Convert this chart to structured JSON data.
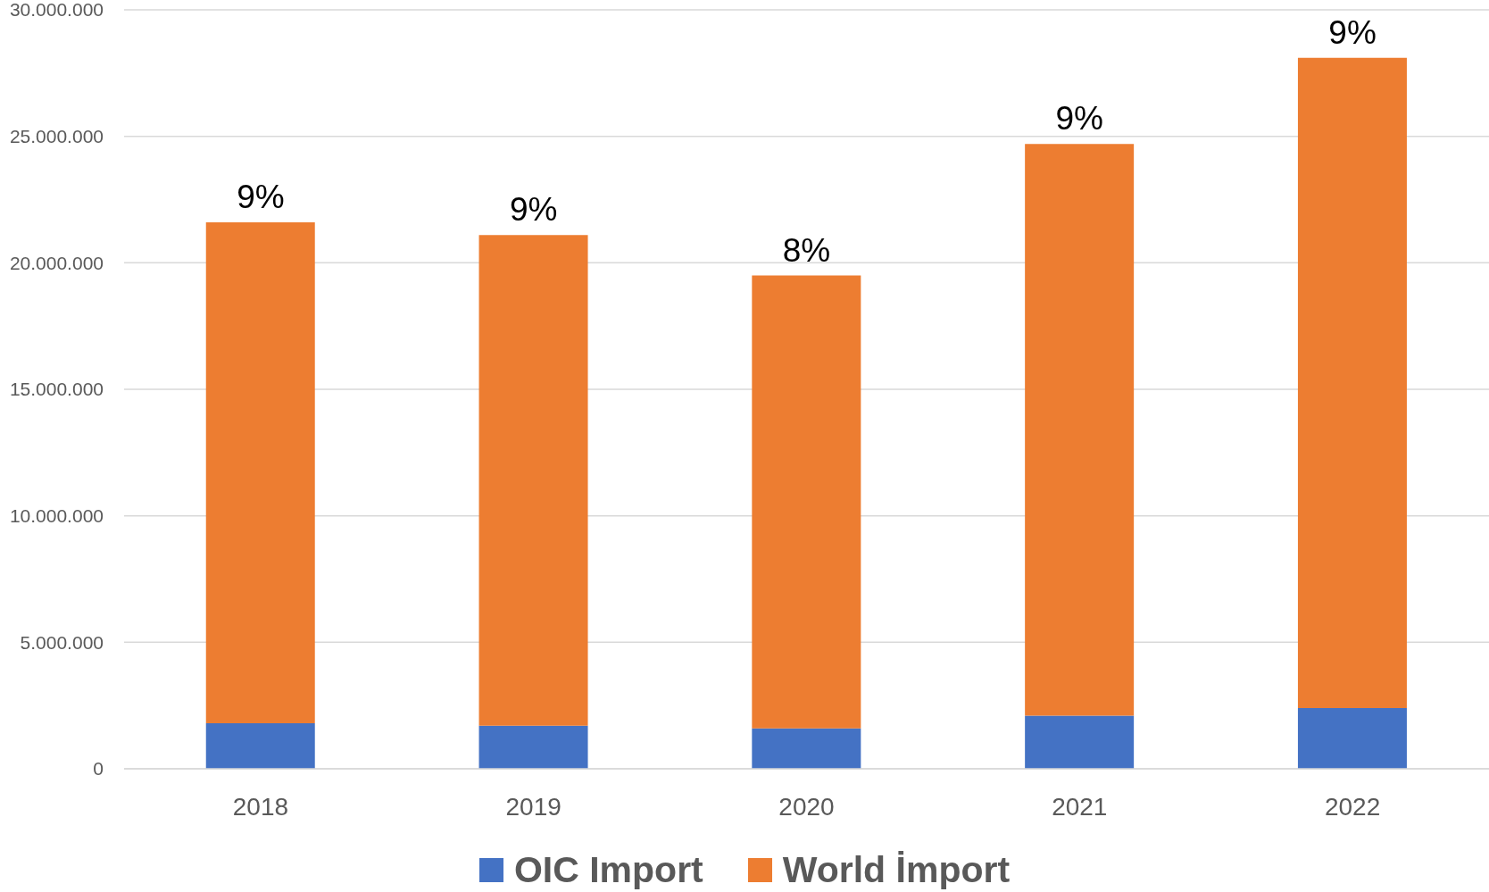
{
  "chart_data": {
    "type": "bar",
    "categories": [
      "2018",
      "2019",
      "2020",
      "2021",
      "2022"
    ],
    "series": [
      {
        "name": "OIC Import",
        "color": "#4472c4",
        "values": [
          1800000,
          1700000,
          1600000,
          2100000,
          2400000
        ]
      },
      {
        "name": "World İmport",
        "color": "#ed7d31",
        "values": [
          19800000,
          19400000,
          17900000,
          22600000,
          25700000
        ]
      }
    ],
    "annotations": [
      {
        "text": "9%",
        "x": "2018",
        "y": 21600000
      },
      {
        "text": "9%",
        "x": "2019",
        "y": 21100000
      },
      {
        "text": "8%",
        "x": "2020",
        "y": 19500000
      },
      {
        "text": "9%",
        "x": "2021",
        "y": 24700000
      },
      {
        "text": "9%",
        "x": "2022",
        "y": 28100000
      }
    ],
    "stacked": true,
    "ylim": [
      0,
      30000000
    ],
    "yticks": [
      {
        "value": 0,
        "label": "0"
      },
      {
        "value": 5000000,
        "label": "5.000.000"
      },
      {
        "value": 10000000,
        "label": "10.000.000"
      },
      {
        "value": 15000000,
        "label": "15.000.000"
      },
      {
        "value": 20000000,
        "label": "20.000.000"
      },
      {
        "value": 25000000,
        "label": "25.000.000"
      },
      {
        "value": 30000000,
        "label": "30.000.000"
      }
    ],
    "grid": "y",
    "legend": "bottom"
  }
}
